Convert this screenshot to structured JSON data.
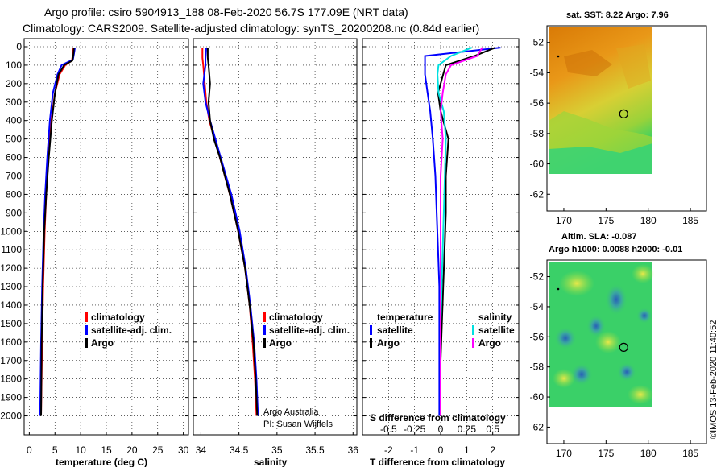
{
  "header": {
    "line1": "Argo profile: csiro 5904913_188 08-Feb-2020 56.7S 177.09E (NRT data)",
    "line2": "Climatology: CARS2009. Satellite-adjusted climatology: synTS_20200208.nc (0.84d earlier)"
  },
  "colors": {
    "argo": "#000000",
    "clim": "#ff0000",
    "sat": "#0000ff",
    "sat_salt": "#00e0e0",
    "clim_salt": "#ff00ff"
  },
  "chart_data": [
    {
      "type": "line",
      "id": "temperature",
      "xlabel": "temperature (deg C)",
      "xlim": [
        -1,
        31
      ],
      "xticks": [
        0,
        5,
        10,
        15,
        20,
        25,
        30
      ],
      "xtick_labels": [
        "0",
        "5",
        "10",
        "15",
        "20",
        "25",
        "30"
      ],
      "ylim": [
        0,
        2050
      ],
      "yticks": [
        0,
        100,
        200,
        300,
        400,
        500,
        600,
        700,
        800,
        900,
        1000,
        1100,
        1200,
        1300,
        1400,
        1500,
        1600,
        1700,
        1800,
        1900,
        2000
      ],
      "ytick_labels": [
        "0",
        "100",
        "200",
        "300",
        "400",
        "500",
        "600",
        "700",
        "800",
        "900",
        "1000",
        "1100",
        "1200",
        "1300",
        "1400",
        "1500",
        "1600",
        "1700",
        "1800",
        "1900",
        "2000"
      ],
      "legend": [
        "climatology",
        "satellite-adj. clim.",
        "Argo"
      ],
      "series": [
        {
          "name": "climatology",
          "color": "#ff0000",
          "depth": [
            5,
            40,
            75,
            100,
            150,
            250,
            400,
            600,
            800,
            1000,
            1300,
            1600,
            2000
          ],
          "values": [
            8.6,
            8.5,
            8.3,
            7.0,
            5.9,
            5.0,
            4.3,
            3.7,
            3.3,
            3.0,
            2.7,
            2.5,
            2.3
          ]
        },
        {
          "name": "satellite-adj. clim.",
          "color": "#0000ff",
          "depth": [
            5,
            40,
            70,
            100,
            150,
            250,
            400,
            600,
            800,
            1000,
            1300,
            1600,
            2000
          ],
          "values": [
            8.9,
            8.7,
            8.5,
            6.3,
            5.5,
            4.6,
            4.0,
            3.5,
            3.1,
            2.8,
            2.5,
            2.3,
            2.1
          ]
        },
        {
          "name": "Argo",
          "color": "#000000",
          "depth": [
            5,
            40,
            75,
            100,
            150,
            250,
            400,
            600,
            800,
            1000,
            1300,
            1600,
            2000
          ],
          "values": [
            8.7,
            8.6,
            8.4,
            6.8,
            5.7,
            5.0,
            4.4,
            3.8,
            3.3,
            2.9,
            2.6,
            2.4,
            2.3
          ]
        }
      ]
    },
    {
      "type": "line",
      "id": "salinity",
      "xlabel": "salinity",
      "xlim": [
        33.9,
        36.05
      ],
      "xticks": [
        34,
        34.5,
        35,
        35.5,
        36
      ],
      "xtick_labels": [
        "34",
        "34.5",
        "35",
        "35.5",
        "36"
      ],
      "ylim": [
        0,
        2050
      ],
      "legend": [
        "climatology",
        "satellite-adj. clim.",
        "Argo"
      ],
      "annotation": [
        "Argo Australia",
        "PI: Susan Wijffels"
      ],
      "series": [
        {
          "name": "climatology",
          "color": "#ff0000",
          "depth": [
            5,
            60,
            100,
            200,
            300,
            400,
            500,
            600,
            800,
            1000,
            1200,
            1400,
            1600,
            1800,
            2000
          ],
          "values": [
            34.02,
            34.02,
            34.03,
            34.05,
            34.07,
            34.11,
            34.18,
            34.25,
            34.38,
            34.49,
            34.58,
            34.64,
            34.68,
            34.71,
            34.73
          ]
        },
        {
          "name": "satellite-adj. clim.",
          "color": "#0000ff",
          "depth": [
            5,
            60,
            100,
            200,
            300,
            400,
            500,
            600,
            800,
            1000,
            1200,
            1400,
            1600,
            1800,
            2000
          ],
          "values": [
            34.07,
            34.06,
            34.06,
            34.03,
            34.06,
            34.12,
            34.19,
            34.26,
            34.4,
            34.51,
            34.59,
            34.65,
            34.7,
            34.73,
            34.75
          ]
        },
        {
          "name": "Argo",
          "color": "#000000",
          "depth": [
            5,
            60,
            100,
            200,
            300,
            400,
            500,
            600,
            800,
            1000,
            1200,
            1400,
            1600,
            1800,
            2000
          ],
          "values": [
            34.09,
            34.09,
            34.1,
            34.12,
            34.1,
            34.12,
            34.17,
            34.25,
            34.38,
            34.49,
            34.58,
            34.64,
            34.69,
            34.72,
            34.74
          ]
        }
      ]
    },
    {
      "type": "line",
      "id": "difference",
      "xlabel": "T difference from climatology",
      "xlabel_top": "S difference from climatology",
      "xlim": [
        -3,
        3
      ],
      "xticks": [
        -2,
        -1,
        0,
        1,
        2
      ],
      "xtick_labels": [
        "-2",
        "-1",
        "0",
        "1",
        "2"
      ],
      "top_ticks": [
        -0.5,
        -0.25,
        0,
        0.25,
        0.5
      ],
      "top_tick_labels": [
        "-0.5",
        "-0.25",
        "0",
        "0.25",
        "0.5"
      ],
      "ylim": [
        0,
        2050
      ],
      "legend_left_title": "temperature",
      "legend_right_title": "salinity",
      "legend": [
        "satellite",
        "Argo",
        "satellite",
        "Argo"
      ],
      "series": [
        {
          "name": "temperature satellite",
          "color": "#0000ff",
          "depth": [
            5,
            50,
            100,
            150,
            250,
            350,
            500,
            700,
            900,
            1100,
            1300,
            1500,
            1700,
            2000
          ],
          "values": [
            2.3,
            -0.6,
            -0.6,
            -0.6,
            -0.5,
            -0.4,
            -0.3,
            -0.2,
            -0.15,
            -0.1,
            -0.05,
            -0.05,
            -0.05,
            -0.05
          ]
        },
        {
          "name": "temperature Argo",
          "color": "#000000",
          "depth": [
            5,
            50,
            100,
            150,
            250,
            350,
            500,
            700,
            900,
            1100,
            1300,
            1500,
            1700,
            2000
          ],
          "values": [
            2.1,
            1.3,
            0.2,
            0.1,
            -0.1,
            0.0,
            0.3,
            0.2,
            0.2,
            0.15,
            0.1,
            0.05,
            0.0,
            0.0
          ]
        },
        {
          "name": "salinity satellite",
          "color": "#00e0e0",
          "depth": [
            5,
            50,
            100,
            150,
            250,
            350,
            500,
            700,
            900,
            1100,
            1300,
            1500,
            1700,
            2000
          ],
          "values": [
            0.3,
            0.1,
            -0.02,
            -0.03,
            -0.02,
            0.03,
            0.05,
            0.04,
            0.03,
            0.02,
            0.01,
            0.0,
            0.0,
            0.0
          ]
        },
        {
          "name": "salinity Argo",
          "color": "#ff00ff",
          "depth": [
            5,
            50,
            100,
            150,
            250,
            350,
            500,
            700,
            900,
            1100,
            1300,
            1500,
            1700,
            2000
          ],
          "values": [
            0.4,
            0.35,
            0.1,
            0.05,
            0.02,
            0.0,
            0.02,
            0.0,
            0.0,
            0.0,
            0.0,
            0.0,
            0.0,
            0.0
          ]
        }
      ]
    },
    {
      "type": "heatmap",
      "id": "sst-map",
      "title": "sat. SST: 8.22 Argo: 7.96",
      "xticks": [
        170,
        175,
        180,
        185
      ],
      "xtick_labels": [
        "170",
        "175",
        "180",
        "185"
      ],
      "yticks": [
        -52,
        -54,
        -56,
        -58,
        -60,
        -62
      ],
      "ytick_labels": [
        "-52",
        "-54",
        "-56",
        "-58",
        "-60",
        "-62"
      ],
      "float_position": {
        "lon": 177.09,
        "lat": -56.7
      }
    },
    {
      "type": "heatmap",
      "id": "sla-map",
      "title_line1": "Altim. SLA: -0.087",
      "title_line2": "Argo h1000: 0.0088 h2000: -0.01",
      "xticks": [
        170,
        175,
        180,
        185
      ],
      "xtick_labels": [
        "170",
        "175",
        "180",
        "185"
      ],
      "yticks": [
        -52,
        -54,
        -56,
        -58,
        -60,
        -62
      ],
      "ytick_labels": [
        "-52",
        "-54",
        "-56",
        "-58",
        "-60",
        "-62"
      ],
      "float_position": {
        "lon": 177.09,
        "lat": -56.7
      }
    }
  ],
  "footer": {
    "credit": "©IMOS 13-Feb-2020 11:40:52"
  }
}
